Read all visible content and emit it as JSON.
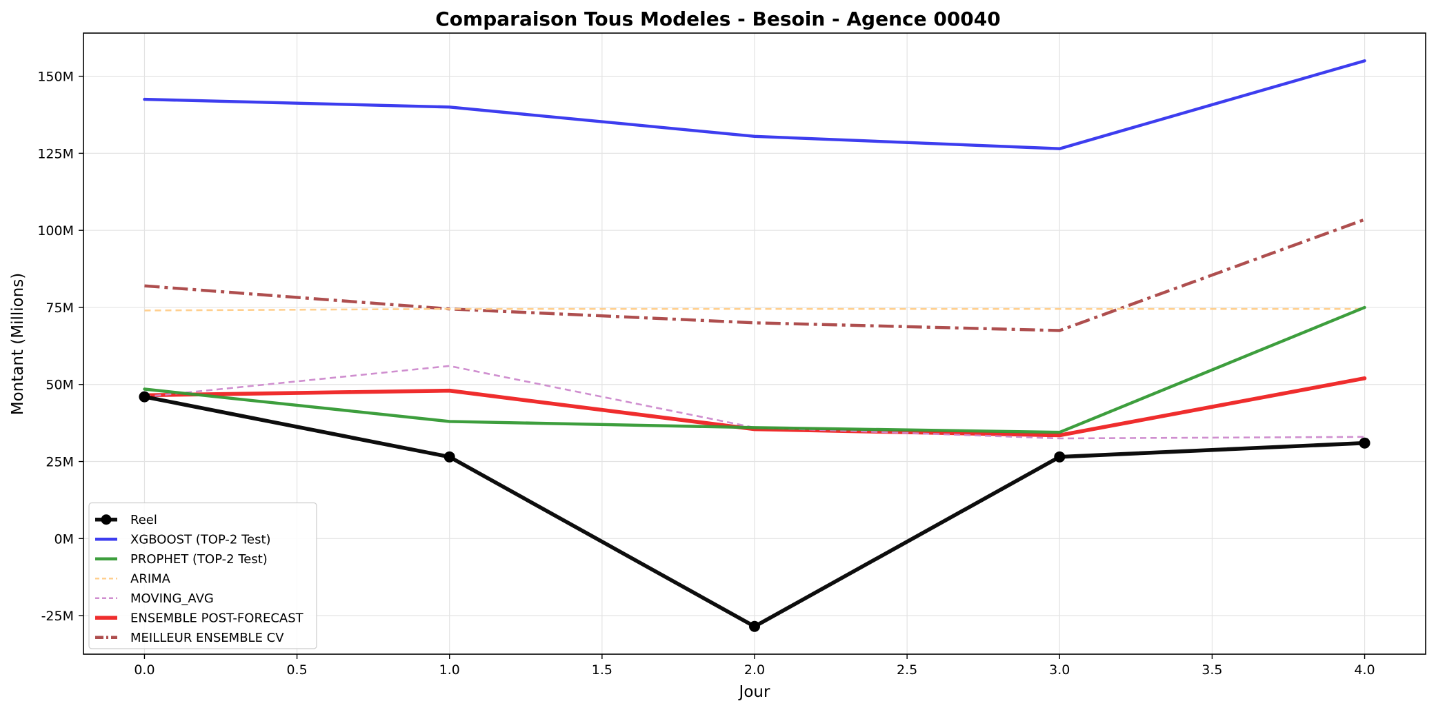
{
  "chart_data": {
    "type": "line",
    "title": "Comparaison Tous Modeles - Besoin - Agence 00040",
    "xlabel": "Jour",
    "ylabel": "Montant (Millions)",
    "x": [
      0,
      1,
      2,
      3,
      4
    ],
    "xlim": [
      -0.2,
      4.2
    ],
    "ylim": [
      -37.5,
      164
    ],
    "xticks": [
      0.0,
      0.5,
      1.0,
      1.5,
      2.0,
      2.5,
      3.0,
      3.5,
      4.0
    ],
    "xtick_labels": [
      "0.0",
      "0.5",
      "1.0",
      "1.5",
      "2.0",
      "2.5",
      "3.0",
      "3.5",
      "4.0"
    ],
    "yticks": [
      -25,
      0,
      25,
      50,
      75,
      100,
      125,
      150
    ],
    "ytick_labels": [
      "-25M",
      "0M",
      "25M",
      "50M",
      "75M",
      "100M",
      "125M",
      "150M"
    ],
    "grid": true,
    "legend_position": "lower-left",
    "series": [
      {
        "name": "Reel",
        "values": [
          46,
          26.5,
          -28.5,
          26.5,
          31
        ],
        "color": "#000000",
        "style": "solid",
        "marker": "circle",
        "width": "thick"
      },
      {
        "name": "XGBOOST (TOP-2 Test)",
        "values": [
          142.5,
          140,
          130.5,
          126.5,
          155
        ],
        "color": "#3333ee",
        "style": "solid",
        "width": "medium"
      },
      {
        "name": "PROPHET (TOP-2 Test)",
        "values": [
          48.5,
          38,
          36,
          34.5,
          75
        ],
        "color": "#339933",
        "style": "solid",
        "width": "medium"
      },
      {
        "name": "ARIMA",
        "values": [
          74,
          74.5,
          74.5,
          74.5,
          74.5
        ],
        "color": "#ffcc88",
        "style": "dashed",
        "width": "thin"
      },
      {
        "name": "MOVING_AVG",
        "values": [
          46,
          56,
          36,
          32.5,
          33
        ],
        "color": "#cc88cc",
        "style": "dashed",
        "width": "thin"
      },
      {
        "name": "ENSEMBLE POST-FORECAST",
        "values": [
          46.5,
          48,
          35.5,
          33.5,
          52
        ],
        "color": "#ee2222",
        "style": "solid",
        "width": "thick"
      },
      {
        "name": "MEILLEUR ENSEMBLE CV",
        "values": [
          82,
          74.5,
          70,
          67.5,
          103.5
        ],
        "color": "#aa4444",
        "style": "dashdot",
        "width": "medium"
      }
    ]
  }
}
